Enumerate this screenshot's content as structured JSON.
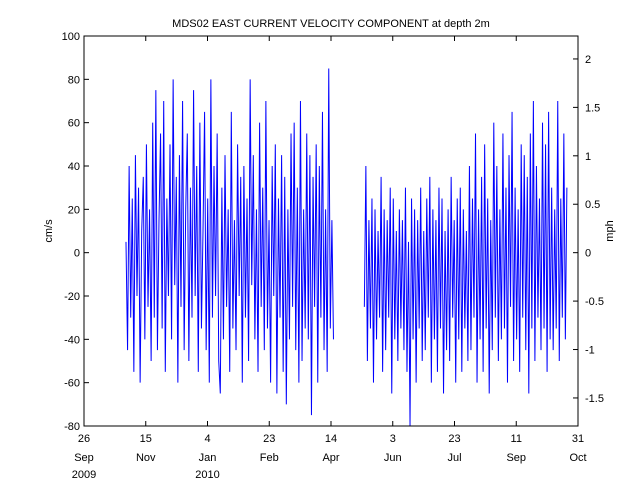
{
  "chart_data": {
    "type": "line",
    "title": "MDS02 EAST CURRENT VELOCITY COMPONENT at depth 2m",
    "ylabel_left": "cm/s",
    "ylabel_right": "mph",
    "ylim_left": [
      -80,
      100
    ],
    "ylim_right_ticks": [
      "-1.5",
      "-1",
      "-0.5",
      "0",
      "0.5",
      "1",
      "1.5",
      "2"
    ],
    "yticks_left": [
      "-80",
      "-60",
      "-40",
      "-20",
      "0",
      "20",
      "40",
      "60",
      "80",
      "100"
    ],
    "x_range": [
      "2009-09-26",
      "2010-10-31"
    ],
    "x_ticks": [
      {
        "date": "2009-09-26",
        "day": "26",
        "month": "Sep",
        "year": "2009"
      },
      {
        "date": "2009-11-15",
        "day": "15",
        "month": "Nov",
        "year": ""
      },
      {
        "date": "2010-01-04",
        "day": "4",
        "month": "Jan",
        "year": "2010"
      },
      {
        "date": "2010-02-23",
        "day": "23",
        "month": "Feb",
        "year": ""
      },
      {
        "date": "2010-04-14",
        "day": "14",
        "month": "Apr",
        "year": ""
      },
      {
        "date": "2010-06-03",
        "day": "3",
        "month": "Jun",
        "year": ""
      },
      {
        "date": "2010-07-23",
        "day": "23",
        "month": "Jul",
        "year": ""
      },
      {
        "date": "2010-09-11",
        "day": "11",
        "month": "Sep",
        "year": ""
      },
      {
        "date": "2010-10-31",
        "day": "31",
        "month": "Oct",
        "year": ""
      }
    ],
    "grid": false,
    "series": [
      {
        "color": "#0000ff",
        "segments": [
          {
            "start": "2009-10-30",
            "end": "2010-04-16",
            "values": [
              5,
              -45,
              40,
              -30,
              25,
              -55,
              45,
              -20,
              30,
              -60,
              10,
              35,
              -40,
              50,
              -25,
              20,
              -50,
              60,
              -30,
              75,
              -45,
              15,
              55,
              -35,
              70,
              -55,
              25,
              -20,
              50,
              -40,
              80,
              -15,
              35,
              -60,
              45,
              -25,
              70,
              -45,
              20,
              55,
              -50,
              30,
              -30,
              75,
              -20,
              40,
              -55,
              60,
              -35,
              10,
              65,
              -45,
              25,
              -60,
              80,
              -30,
              40,
              -20,
              55,
              -50,
              -65,
              30,
              -40,
              45,
              -25,
              20,
              -55,
              65,
              -35,
              15,
              -45,
              50,
              -20,
              35,
              -60,
              40,
              -30,
              25,
              -50,
              80,
              -15,
              45,
              -40,
              20,
              -55,
              60,
              -25,
              30,
              -45,
              70,
              -35,
              15,
              -60,
              40,
              -20,
              50,
              -65,
              25,
              -30,
              45,
              -55,
              35,
              -70,
              20,
              -40,
              55,
              -25,
              60,
              -45,
              30,
              -60,
              70,
              -50,
              20,
              -35,
              55,
              -40,
              45,
              -75,
              35,
              -25,
              50,
              -60,
              40,
              -30,
              65,
              -45,
              20,
              -55,
              85,
              -35,
              15,
              -40
            ]
          },
          {
            "start": "2010-05-11",
            "end": "2010-10-22",
            "values": [
              -25,
              40,
              -50,
              15,
              -35,
              25,
              -60,
              20,
              -40,
              10,
              -30,
              35,
              -55,
              20,
              -45,
              15,
              -30,
              30,
              -65,
              25,
              -40,
              10,
              -50,
              20,
              -35,
              15,
              -45,
              30,
              -55,
              5,
              -80,
              25,
              -40,
              20,
              -60,
              15,
              -35,
              30,
              -50,
              10,
              -45,
              25,
              -30,
              35,
              -60,
              20,
              -40,
              15,
              -55,
              30,
              -35,
              25,
              -65,
              10,
              -45,
              20,
              -50,
              35,
              -30,
              15,
              -60,
              25,
              -40,
              30,
              -55,
              20,
              -35,
              10,
              -50,
              40,
              -45,
              25,
              -30,
              55,
              -60,
              20,
              -40,
              35,
              -55,
              50,
              -35,
              25,
              -65,
              15,
              -45,
              60,
              -30,
              40,
              -50,
              20,
              -40,
              55,
              -35,
              30,
              -60,
              45,
              -25,
              65,
              -50,
              30,
              -40,
              20,
              -55,
              50,
              -30,
              45,
              -45,
              35,
              -65,
              55,
              -35,
              70,
              -50,
              40,
              -30,
              25,
              -45,
              60,
              -35,
              50,
              -55,
              65,
              -40,
              30,
              -45,
              20,
              -35,
              70,
              -50,
              25,
              -30,
              55,
              -40,
              30
            ]
          }
        ]
      }
    ]
  }
}
